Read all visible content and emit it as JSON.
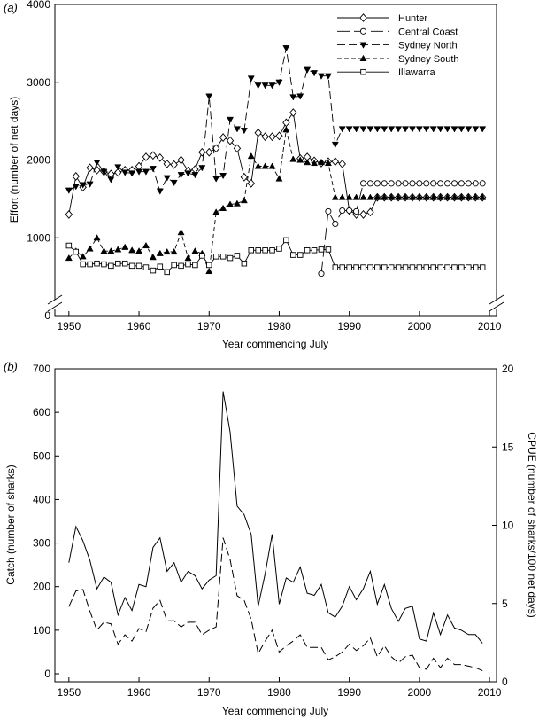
{
  "chart_data": [
    {
      "type": "line",
      "panel_label": "(a)",
      "ylabel": "Effort (number of net days)",
      "xlabel": "Year commencing July",
      "xlim": [
        1948,
        2011
      ],
      "ylim": [
        0,
        4000
      ],
      "axis_break": true,
      "grid": false,
      "legend_position": "top-right",
      "xticks": [
        1950,
        1960,
        1970,
        1980,
        1990,
        2000,
        2010
      ],
      "yticks": [
        0,
        1000,
        2000,
        3000,
        4000
      ],
      "series": [
        {
          "name": "Hunter",
          "style": "solid",
          "marker": "diamond-open",
          "x": [
            1950,
            1951,
            1952,
            1953,
            1954,
            1955,
            1956,
            1957,
            1958,
            1959,
            1960,
            1961,
            1962,
            1963,
            1964,
            1965,
            1966,
            1967,
            1968,
            1969,
            1970,
            1971,
            1972,
            1973,
            1974,
            1975,
            1976,
            1977,
            1978,
            1979,
            1980,
            1981,
            1982,
            1983,
            1984,
            1985,
            1986,
            1987,
            1988,
            1989,
            1990,
            1991,
            1992,
            1993,
            1994,
            1995,
            1996,
            1997,
            1998,
            1999,
            2000,
            2001,
            2002,
            2003,
            2004,
            2005,
            2006,
            2007,
            2008,
            2009
          ],
          "values": [
            1300,
            1790,
            1650,
            1900,
            1870,
            1850,
            1820,
            1840,
            1870,
            1870,
            1920,
            2040,
            2060,
            2030,
            1950,
            1940,
            2000,
            1860,
            1880,
            2100,
            2100,
            2150,
            2290,
            2250,
            2150,
            1780,
            1700,
            2350,
            2300,
            2300,
            2310,
            2480,
            2610,
            2020,
            2040,
            1990,
            1960,
            1980,
            1980,
            1950,
            1350,
            1300,
            1300,
            1330,
            1520,
            1520,
            1520,
            1520,
            1520,
            1520,
            1520,
            1520,
            1520,
            1520,
            1520,
            1520,
            1520,
            1520,
            1520,
            1520
          ]
        },
        {
          "name": "Central Coast",
          "style": "long-dash",
          "marker": "circle-open",
          "x": [
            1986,
            1987,
            1988,
            1989,
            1990,
            1991,
            1992,
            1993,
            1994,
            1995,
            1996,
            1997,
            1998,
            1999,
            2000,
            2001,
            2002,
            2003,
            2004,
            2005,
            2006,
            2007,
            2008,
            2009
          ],
          "values": [
            540,
            1340,
            1180,
            1350,
            1350,
            1340,
            1700,
            1700,
            1700,
            1700,
            1700,
            1700,
            1700,
            1700,
            1700,
            1700,
            1700,
            1700,
            1700,
            1700,
            1700,
            1700,
            1700,
            1700
          ]
        },
        {
          "name": "Sydney North",
          "style": "dash",
          "marker": "triangle-down-filled",
          "x": [
            1950,
            1951,
            1952,
            1953,
            1954,
            1955,
            1956,
            1957,
            1958,
            1959,
            1960,
            1961,
            1962,
            1963,
            1964,
            1965,
            1966,
            1967,
            1968,
            1969,
            1970,
            1971,
            1972,
            1973,
            1974,
            1975,
            1976,
            1977,
            1978,
            1979,
            1980,
            1981,
            1982,
            1983,
            1984,
            1985,
            1986,
            1987,
            1988,
            1989,
            1990,
            1991,
            1992,
            1993,
            1994,
            1995,
            1996,
            1997,
            1998,
            1999,
            2000,
            2001,
            2002,
            2003,
            2004,
            2005,
            2006,
            2007,
            2008,
            2009
          ],
          "values": [
            1610,
            1660,
            1680,
            1690,
            1970,
            1850,
            1750,
            1910,
            1840,
            1830,
            1850,
            1850,
            1890,
            1600,
            1770,
            1710,
            1810,
            1830,
            1810,
            1900,
            2820,
            1760,
            1800,
            2520,
            2400,
            2380,
            3050,
            2960,
            2960,
            2960,
            3000,
            3440,
            2810,
            2820,
            3160,
            3120,
            3080,
            3080,
            2200,
            2400,
            2400,
            2400,
            2400,
            2400,
            2400,
            2400,
            2400,
            2400,
            2400,
            2400,
            2400,
            2400,
            2400,
            2400,
            2400,
            2400,
            2400,
            2400,
            2400,
            2400
          ]
        },
        {
          "name": "Sydney South",
          "style": "short-dash",
          "marker": "triangle-up-filled",
          "x": [
            1950,
            1951,
            1952,
            1953,
            1954,
            1955,
            1956,
            1957,
            1958,
            1959,
            1960,
            1961,
            1962,
            1963,
            1964,
            1965,
            1966,
            1967,
            1968,
            1969,
            1970,
            1971,
            1972,
            1973,
            1974,
            1975,
            1976,
            1977,
            1978,
            1979,
            1980,
            1981,
            1982,
            1983,
            1984,
            1985,
            1986,
            1987,
            1988,
            1989,
            1990,
            1991,
            1992,
            1993,
            1994,
            1995,
            1996,
            1997,
            1998,
            1999,
            2000,
            2001,
            2002,
            2003,
            2004,
            2005,
            2006,
            2007,
            2008,
            2009
          ],
          "values": [
            740,
            830,
            760,
            860,
            1000,
            830,
            830,
            850,
            880,
            840,
            830,
            900,
            750,
            800,
            820,
            820,
            1070,
            740,
            830,
            800,
            570,
            1330,
            1380,
            1430,
            1440,
            1480,
            2050,
            1920,
            1920,
            1920,
            1760,
            2390,
            2010,
            2000,
            1970,
            1960,
            1970,
            1960,
            1520,
            1520,
            1520,
            1520,
            1520,
            1520,
            1520,
            1520,
            1520,
            1520,
            1520,
            1520,
            1520,
            1520,
            1520,
            1520,
            1520,
            1520,
            1520,
            1520,
            1520,
            1520
          ]
        },
        {
          "name": "Illawarra",
          "style": "solid",
          "marker": "square-open",
          "x": [
            1950,
            1951,
            1952,
            1953,
            1954,
            1955,
            1956,
            1957,
            1958,
            1959,
            1960,
            1961,
            1962,
            1963,
            1964,
            1965,
            1966,
            1967,
            1968,
            1969,
            1970,
            1971,
            1972,
            1973,
            1974,
            1975,
            1976,
            1977,
            1978,
            1979,
            1980,
            1981,
            1982,
            1983,
            1984,
            1985,
            1986,
            1987,
            1988,
            1989,
            1990,
            1991,
            1992,
            1993,
            1994,
            1995,
            1996,
            1997,
            1998,
            1999,
            2000,
            2001,
            2002,
            2003,
            2004,
            2005,
            2006,
            2007,
            2008,
            2009
          ],
          "values": [
            900,
            820,
            660,
            660,
            670,
            660,
            640,
            670,
            670,
            640,
            640,
            620,
            580,
            630,
            560,
            650,
            640,
            660,
            650,
            770,
            650,
            760,
            760,
            740,
            770,
            670,
            840,
            840,
            840,
            840,
            860,
            970,
            780,
            780,
            840,
            840,
            850,
            850,
            620,
            620,
            620,
            620,
            620,
            620,
            620,
            620,
            620,
            620,
            620,
            620,
            620,
            620,
            620,
            620,
            620,
            620,
            620,
            620,
            620,
            620
          ]
        }
      ]
    },
    {
      "type": "line",
      "panel_label": "(b)",
      "ylabel": "Catch (number of sharks)",
      "y2label": "CPUE (number of sharks/100 net days)",
      "xlabel": "Year commencing July",
      "xlim": [
        1948,
        2011
      ],
      "ylim": [
        0,
        700
      ],
      "y2lim": [
        0,
        20
      ],
      "grid": false,
      "xticks": [
        1950,
        1960,
        1970,
        1980,
        1990,
        2000,
        2010
      ],
      "yticks": [
        0,
        100,
        200,
        300,
        400,
        500,
        600,
        700
      ],
      "y2ticks": [
        0,
        5,
        10,
        15,
        20
      ],
      "series": [
        {
          "name": "",
          "axis": "left",
          "style": "solid",
          "x": [
            1950,
            1951,
            1952,
            1953,
            1954,
            1955,
            1956,
            1957,
            1958,
            1959,
            1960,
            1961,
            1962,
            1963,
            1964,
            1965,
            1966,
            1967,
            1968,
            1969,
            1970,
            1971,
            1972,
            1973,
            1974,
            1975,
            1976,
            1977,
            1978,
            1979,
            1980,
            1981,
            1982,
            1983,
            1984,
            1985,
            1986,
            1987,
            1988,
            1989,
            1990,
            1991,
            1992,
            1993,
            1994,
            1995,
            1996,
            1997,
            1998,
            1999,
            2000,
            2001,
            2002,
            2003,
            2004,
            2005,
            2006,
            2007,
            2008,
            2009
          ],
          "values": [
            255,
            338,
            305,
            260,
            195,
            222,
            210,
            135,
            175,
            145,
            205,
            200,
            290,
            312,
            235,
            255,
            210,
            235,
            225,
            195,
            215,
            225,
            648,
            555,
            385,
            365,
            320,
            155,
            230,
            320,
            160,
            220,
            210,
            245,
            185,
            180,
            205,
            140,
            130,
            155,
            200,
            170,
            195,
            235,
            160,
            205,
            150,
            120,
            150,
            155,
            80,
            75,
            140,
            90,
            135,
            105,
            100,
            90,
            90,
            70
          ]
        },
        {
          "name": "",
          "axis": "right",
          "style": "dash",
          "x": [
            1950,
            1951,
            1952,
            1953,
            1954,
            1955,
            1956,
            1957,
            1958,
            1959,
            1960,
            1961,
            1962,
            1963,
            1964,
            1965,
            1966,
            1967,
            1968,
            1969,
            1970,
            1971,
            1972,
            1973,
            1974,
            1975,
            1976,
            1977,
            1978,
            1979,
            1980,
            1981,
            1982,
            1983,
            1984,
            1985,
            1986,
            1987,
            1988,
            1989,
            1990,
            1991,
            1992,
            1993,
            1994,
            1995,
            1996,
            1997,
            1998,
            1999,
            2000,
            2001,
            2002,
            2003,
            2004,
            2005,
            2006,
            2007,
            2008,
            2009
          ],
          "values": [
            4.8,
            5.8,
            5.9,
            4.5,
            3.3,
            3.8,
            3.7,
            2.4,
            3.0,
            2.6,
            3.4,
            3.2,
            4.7,
            5.2,
            3.9,
            3.9,
            3.5,
            3.8,
            3.8,
            3.0,
            3.3,
            3.5,
            9.2,
            7.8,
            5.5,
            5.2,
            4.0,
            1.8,
            2.6,
            3.3,
            1.9,
            2.3,
            2.6,
            3.0,
            2.2,
            2.2,
            2.2,
            1.4,
            1.6,
            1.9,
            2.4,
            2.0,
            2.3,
            2.8,
            1.6,
            2.3,
            1.6,
            1.2,
            1.6,
            1.7,
            0.9,
            0.8,
            1.5,
            0.9,
            1.5,
            1.1,
            1.1,
            1.0,
            0.9,
            0.7
          ]
        }
      ]
    }
  ]
}
